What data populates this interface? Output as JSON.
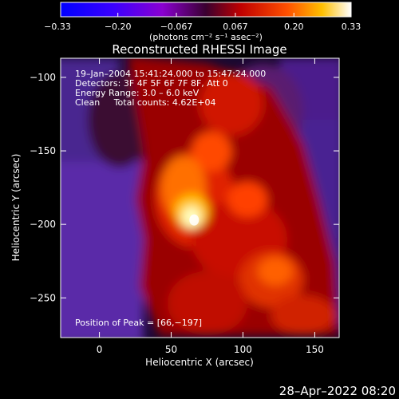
{
  "chart_data": {
    "type": "heatmap",
    "title": "Reconstructed RHESSI Image",
    "xlabel": "Heliocentric X (arcsec)",
    "ylabel": "Heliocentric Y (arcsec)",
    "xlim": [
      -27,
      167
    ],
    "ylim": [
      -277,
      -87
    ],
    "x_ticks": [
      0,
      50,
      100,
      150
    ],
    "y_ticks": [
      -100,
      -150,
      -200,
      -250
    ],
    "colorbar": {
      "range": [
        -0.33,
        0.33
      ],
      "ticks": [
        {
          "value": -0.33,
          "label": "−0.33"
        },
        {
          "value": -0.2,
          "label": "−0.20"
        },
        {
          "value": -0.067,
          "label": "−0.067"
        },
        {
          "value": 0.067,
          "label": "0.067"
        },
        {
          "value": 0.2,
          "label": "0.20"
        },
        {
          "value": 0.33,
          "label": "0.33"
        }
      ],
      "unit_label": "(photons cm⁻² s⁻¹ asec⁻²)"
    },
    "annotations": [
      "19–Jan–2004 15:41:24.000 to 15:47:24.000",
      "Detectors: 3F 4F 5F 6F 7F 8F, Att 0",
      "Energy Range: 3.0 – 6.0 keV",
      "Clean     Total counts: 4.62E+04"
    ],
    "peak_label": "Position of Peak = [66,−197]",
    "peak": {
      "x": 66,
      "y": -197,
      "value": 0.33
    },
    "colors": {
      "background": "#000000",
      "text": "#ffffff",
      "colormap": [
        "#0000ff",
        "#5a00d0",
        "#8a00a0",
        "#c00000",
        "#ff5000",
        "#ffd000",
        "#ffffff"
      ]
    }
  },
  "footer": {
    "timestamp": "28–Apr–2022 08:20"
  }
}
